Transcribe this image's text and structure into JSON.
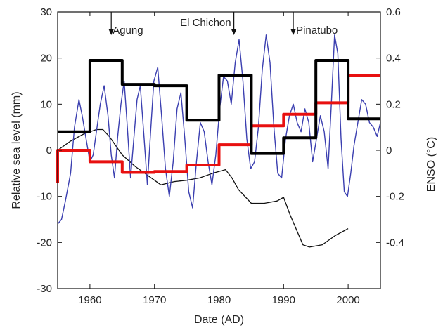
{
  "chart_data": {
    "type": "line",
    "xlabel": "Date (AD)",
    "ylabel": "Relative sea level (mm)",
    "y2label": "ENSO (°C)",
    "xlim": [
      1955,
      2005
    ],
    "ylim": [
      -30,
      30
    ],
    "y2lim": [
      -0.6,
      0.6
    ],
    "x_ticks": [
      1960,
      1970,
      1980,
      1990,
      2000
    ],
    "y_ticks": [
      30,
      20,
      10,
      0,
      -10,
      -20,
      -30
    ],
    "y2_ticks": [
      "0.6",
      "0.4",
      "0.2",
      "0",
      "-0.2",
      "-0.4"
    ],
    "grid": false,
    "colors": {
      "black_steps": "#000000",
      "red_steps": "#e81010",
      "enso": "#3b3fb0",
      "thin_line": "#111111"
    },
    "annotations": [
      {
        "label": "Agung",
        "x": 1963.3
      },
      {
        "label": "El Chichon",
        "x": 1982.3
      },
      {
        "label": "Pinatubo",
        "x": 1991.5
      }
    ],
    "series": [
      {
        "axis": "left",
        "style": "step-thick-black",
        "x": [
          1955,
          1960,
          1960,
          1965,
          1965,
          1970,
          1970,
          1975,
          1975,
          1980,
          1980,
          1985,
          1985,
          1990,
          1990,
          1995,
          1995,
          2000,
          2000,
          2005
        ],
        "y": [
          4,
          4,
          19.5,
          19.5,
          14.3,
          14.3,
          14,
          14,
          6.5,
          6.5,
          16.3,
          16.3,
          -0.7,
          -0.7,
          2.7,
          2.7,
          19.5,
          19.5,
          6.8,
          6.8
        ]
      },
      {
        "axis": "left",
        "style": "step-thick-red",
        "x": [
          1955,
          1955,
          1960,
          1960,
          1965,
          1965,
          1970,
          1970,
          1975,
          1975,
          1980,
          1980,
          1985,
          1985,
          1990,
          1990,
          1995,
          1995,
          2000,
          2000,
          2005
        ],
        "y": [
          -7,
          0,
          0,
          -2.5,
          -2.5,
          -4.8,
          -4.8,
          -4.6,
          -4.6,
          -3.2,
          -3.2,
          1.2,
          1.2,
          5.3,
          5.3,
          7.8,
          7.8,
          10.3,
          10.3,
          16.2,
          16.2
        ]
      },
      {
        "axis": "left",
        "style": "thin-black",
        "x": [
          1955,
          1957,
          1959,
          1961,
          1962,
          1963,
          1965,
          1967,
          1969,
          1971,
          1973,
          1975,
          1977,
          1979,
          1981,
          1982,
          1983,
          1985,
          1987,
          1989,
          1990,
          1991,
          1993,
          1994,
          1996,
          1998,
          2000
        ],
        "y": [
          0,
          2,
          3.5,
          4.5,
          4.5,
          3,
          -1,
          -3.5,
          -5.5,
          -7.5,
          -6.8,
          -6.5,
          -6,
          -5,
          -4.2,
          -6,
          -8.5,
          -11.5,
          -11.5,
          -11,
          -10.2,
          -14,
          -20.5,
          -21,
          -20.5,
          -18.5,
          -17
        ]
      },
      {
        "axis": "right",
        "style": "thin-blue",
        "x": [
          1955,
          1955.6,
          1956.2,
          1957,
          1957.6,
          1958.3,
          1958.8,
          1959.4,
          1960,
          1960.5,
          1961,
          1961.6,
          1962.2,
          1962.8,
          1963.3,
          1963.8,
          1964.3,
          1964.8,
          1965.3,
          1965.8,
          1966.3,
          1966.8,
          1967.3,
          1967.8,
          1968.4,
          1968.9,
          1969.4,
          1969.9,
          1970.5,
          1971.1,
          1971.7,
          1972.3,
          1972.9,
          1973.5,
          1974.1,
          1974.7,
          1975.3,
          1975.9,
          1976.5,
          1977.1,
          1977.7,
          1978.3,
          1978.9,
          1979.5,
          1980.1,
          1980.7,
          1981.3,
          1981.9,
          1982.5,
          1983.1,
          1983.7,
          1984.3,
          1984.9,
          1985.5,
          1986.1,
          1986.7,
          1987.3,
          1987.9,
          1988.5,
          1989.1,
          1989.7,
          1990.3,
          1990.9,
          1991.5,
          1992.1,
          1992.7,
          1993.3,
          1993.9,
          1994.5,
          1995.1,
          1995.7,
          1996.3,
          1996.9,
          1997.4,
          1997.9,
          1998.4,
          1998.9,
          1999.4,
          1999.9,
          2000.4,
          2000.9,
          2001.5,
          2002.1,
          2002.7,
          2003.3,
          2003.9,
          2004.5,
          2005
        ],
        "y": [
          -0.32,
          -0.3,
          -0.22,
          -0.1,
          0.1,
          0.22,
          0.15,
          0.05,
          -0.05,
          -0.02,
          0.08,
          0.2,
          0.28,
          0.15,
          -0.02,
          -0.12,
          0.06,
          0.2,
          0.3,
          0.1,
          -0.12,
          0.05,
          0.22,
          0.28,
          0.05,
          -0.15,
          0.08,
          0.3,
          0.36,
          0.15,
          -0.08,
          -0.2,
          -0.05,
          0.18,
          0.25,
          0.05,
          -0.18,
          -0.25,
          -0.05,
          0.12,
          0.08,
          -0.05,
          -0.15,
          -0.02,
          0.18,
          0.32,
          0.3,
          0.2,
          0.38,
          0.48,
          0.3,
          0.05,
          -0.08,
          -0.05,
          0.1,
          0.35,
          0.5,
          0.38,
          0.1,
          -0.1,
          -0.12,
          0.05,
          0.15,
          0.2,
          0.12,
          0.08,
          0.18,
          0.12,
          -0.05,
          0.05,
          0.15,
          0.08,
          -0.08,
          0.2,
          0.5,
          0.42,
          0.05,
          -0.18,
          -0.2,
          -0.1,
          0.02,
          0.12,
          0.22,
          0.2,
          0.12,
          0.1,
          0.06,
          0.12
        ]
      }
    ]
  }
}
